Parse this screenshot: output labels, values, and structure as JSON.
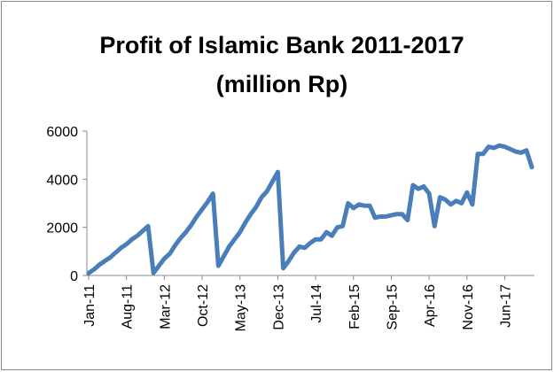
{
  "chart_data": {
    "type": "line",
    "title": [
      "Profit of Islamic Bank 2011-2017",
      "(million Rp)"
    ],
    "categories": [
      "Jan-11",
      null,
      null,
      null,
      null,
      null,
      null,
      "Aug-11",
      null,
      null,
      null,
      null,
      null,
      null,
      "Mar-12",
      null,
      null,
      null,
      null,
      null,
      null,
      "Oct-12",
      null,
      null,
      null,
      null,
      null,
      null,
      "May-13",
      null,
      null,
      null,
      null,
      null,
      null,
      "Dec-13",
      null,
      null,
      null,
      null,
      null,
      null,
      "Jul-14",
      null,
      null,
      null,
      null,
      null,
      null,
      "Feb-15",
      null,
      null,
      null,
      null,
      null,
      null,
      "Sep-15",
      null,
      null,
      null,
      null,
      null,
      null,
      "Apr-16",
      null,
      null,
      null,
      null,
      null,
      null,
      "Nov-16",
      null,
      null,
      null,
      null,
      null,
      null,
      "Jun-17",
      null,
      null,
      null,
      null,
      null
    ],
    "values": [
      100,
      250,
      450,
      600,
      750,
      950,
      1150,
      1300,
      1500,
      1650,
      1850,
      2050,
      100,
      400,
      700,
      900,
      1250,
      1550,
      1800,
      2100,
      2450,
      2750,
      3050,
      3400,
      400,
      800,
      1200,
      1500,
      1800,
      2200,
      2550,
      2850,
      3250,
      3500,
      3900,
      4300,
      300,
      600,
      950,
      1200,
      1150,
      1350,
      1500,
      1500,
      1800,
      1650,
      2000,
      2050,
      3000,
      2800,
      2950,
      2900,
      2900,
      2400,
      2450,
      2450,
      2500,
      2550,
      2550,
      2300,
      3750,
      3600,
      3700,
      3400,
      2050,
      3250,
      3150,
      2950,
      3100,
      3000,
      3450,
      2950,
      5050,
      5050,
      5350,
      5300,
      5400,
      5350,
      5250,
      5150,
      5100,
      5200,
      4500
    ],
    "color": "#4a7ebb",
    "ylim": [
      0,
      6000
    ],
    "yticks": [
      0,
      2000,
      4000,
      6000
    ],
    "grid": false
  }
}
